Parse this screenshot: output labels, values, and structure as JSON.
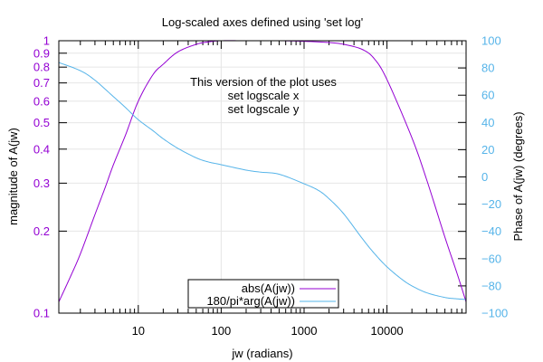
{
  "chart_data": {
    "type": "line",
    "title": "Log-scaled axes defined using 'set log'",
    "xlabel": "jw (radians)",
    "ylabel": "magnitude of A(jw)",
    "y2label": "Phase of A(jw) (degrees)",
    "xscale": "log",
    "yscale": "log",
    "xlim": [
      1.1,
      90000
    ],
    "ylim": [
      0.1,
      1
    ],
    "y2lim": [
      -100,
      100
    ],
    "grid": true,
    "x_ticks": [
      10,
      100,
      1000,
      10000
    ],
    "x_tick_labels": [
      "10",
      "100",
      "1000",
      "10000"
    ],
    "y_ticks": [
      0.1,
      0.2,
      0.3,
      0.4,
      0.5,
      0.6,
      0.7,
      0.8,
      0.9,
      1
    ],
    "y_tick_labels": [
      "0.1",
      "0.2",
      "0.3",
      "0.4",
      "0.5",
      "0.6",
      "0.7",
      "0.8",
      "0.9",
      "1"
    ],
    "y2_ticks": [
      -100,
      -80,
      -60,
      -40,
      -20,
      0,
      20,
      40,
      60,
      80,
      100
    ],
    "y2_tick_labels": [
      "−100",
      "−80",
      "−60",
      "−40",
      "−20",
      "0",
      "20",
      "40",
      "60",
      "80",
      "100"
    ],
    "annotation": [
      "This version of the plot uses",
      "set logscale x",
      "set logscale y"
    ],
    "legend_position": "bottom-center",
    "series": [
      {
        "name": "abs(A(jw))",
        "axis": "left",
        "color": "#9400d3",
        "x": [
          1.1,
          1.5,
          2,
          3,
          4,
          5,
          7,
          10,
          15,
          20,
          30,
          50,
          70,
          100,
          200,
          500,
          1000,
          2000,
          3000,
          5000,
          7000,
          10000,
          20000,
          30000,
          50000,
          70000,
          90000
        ],
        "values": [
          0.11,
          0.135,
          0.165,
          0.23,
          0.29,
          0.35,
          0.45,
          0.6,
          0.75,
          0.82,
          0.91,
          0.97,
          0.99,
          1.0,
          1.0,
          1.0,
          0.995,
          0.985,
          0.97,
          0.93,
          0.86,
          0.72,
          0.44,
          0.31,
          0.19,
          0.14,
          0.11
        ]
      },
      {
        "name": "180/pi*arg(A(jw))",
        "axis": "right",
        "color": "#56b4e9",
        "x": [
          1.1,
          2,
          3,
          5,
          7,
          10,
          15,
          20,
          30,
          50,
          70,
          100,
          200,
          300,
          500,
          1000,
          1500,
          2000,
          3000,
          5000,
          7000,
          10000,
          15000,
          20000,
          30000,
          50000,
          70000,
          90000
        ],
        "values": [
          84,
          78,
          71,
          59,
          51,
          42,
          34,
          28,
          21,
          14,
          11,
          9,
          5,
          3.5,
          2,
          -5,
          -10,
          -16,
          -27,
          -45,
          -56,
          -66,
          -75,
          -80,
          -85,
          -88.5,
          -89.5,
          -90
        ]
      }
    ]
  }
}
